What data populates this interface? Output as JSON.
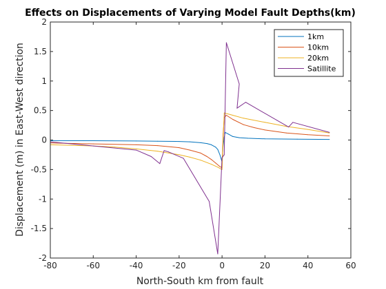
{
  "chart_data": {
    "type": "line",
    "title": "Effects on Displacements of Varying Model Fault Depths(km)",
    "xlabel": "North-South km from fault",
    "ylabel": "Displacement (m) in East-West direction",
    "xlim": [
      -80,
      60
    ],
    "ylim": [
      -2,
      2
    ],
    "xticks": [
      -80,
      -60,
      -40,
      -20,
      0,
      20,
      40,
      60
    ],
    "yticks": [
      -2,
      -1.5,
      -1,
      -0.5,
      0,
      0.5,
      1,
      1.5,
      2
    ],
    "grid": false,
    "legend_position": "top-right",
    "series": [
      {
        "name": "1km",
        "color": "#0072bd",
        "points": [
          [
            -80,
            -0.01
          ],
          [
            -60,
            -0.012
          ],
          [
            -40,
            -0.016
          ],
          [
            -30,
            -0.02
          ],
          [
            -20,
            -0.025
          ],
          [
            -15,
            -0.03
          ],
          [
            -10,
            -0.045
          ],
          [
            -7,
            -0.06
          ],
          [
            -5,
            -0.08
          ],
          [
            -3,
            -0.12
          ],
          [
            -2,
            -0.16
          ],
          [
            -1,
            -0.25
          ],
          [
            0,
            -0.37
          ],
          [
            0.5,
            -0.1
          ],
          [
            1,
            0.05
          ],
          [
            1.5,
            0.13
          ],
          [
            3,
            0.1
          ],
          [
            5,
            0.06
          ],
          [
            8,
            0.04
          ],
          [
            12,
            0.03
          ],
          [
            20,
            0.02
          ],
          [
            35,
            0.015
          ],
          [
            50,
            0.01
          ]
        ]
      },
      {
        "name": "10km",
        "color": "#d95319",
        "points": [
          [
            -80,
            -0.05
          ],
          [
            -60,
            -0.065
          ],
          [
            -40,
            -0.08
          ],
          [
            -30,
            -0.095
          ],
          [
            -20,
            -0.13
          ],
          [
            -15,
            -0.17
          ],
          [
            -10,
            -0.22
          ],
          [
            -7,
            -0.28
          ],
          [
            -5,
            -0.33
          ],
          [
            -3,
            -0.39
          ],
          [
            -1,
            -0.45
          ],
          [
            0,
            -0.47
          ],
          [
            0.5,
            0.1
          ],
          [
            1,
            0.38
          ],
          [
            2,
            0.42
          ],
          [
            5,
            0.35
          ],
          [
            10,
            0.26
          ],
          [
            15,
            0.21
          ],
          [
            20,
            0.17
          ],
          [
            30,
            0.12
          ],
          [
            40,
            0.09
          ],
          [
            50,
            0.07
          ]
        ]
      },
      {
        "name": "20km",
        "color": "#edb120",
        "points": [
          [
            -80,
            -0.08
          ],
          [
            -60,
            -0.1
          ],
          [
            -50,
            -0.12
          ],
          [
            -40,
            -0.15
          ],
          [
            -30,
            -0.19
          ],
          [
            -20,
            -0.25
          ],
          [
            -15,
            -0.29
          ],
          [
            -10,
            -0.34
          ],
          [
            -5,
            -0.41
          ],
          [
            -2,
            -0.46
          ],
          [
            0,
            -0.5
          ],
          [
            0.5,
            0.0
          ],
          [
            1,
            0.46
          ],
          [
            5,
            0.42
          ],
          [
            10,
            0.37
          ],
          [
            20,
            0.3
          ],
          [
            30,
            0.23
          ],
          [
            40,
            0.18
          ],
          [
            50,
            0.12
          ]
        ]
      },
      {
        "name": "Satillite",
        "color": "#7e2f8e",
        "points": [
          [
            -80,
            -0.03
          ],
          [
            -60,
            -0.1
          ],
          [
            -40,
            -0.17
          ],
          [
            -33,
            -0.28
          ],
          [
            -29,
            -0.4
          ],
          [
            -27,
            -0.18
          ],
          [
            -25,
            -0.2
          ],
          [
            -18,
            -0.31
          ],
          [
            -6,
            -1.04
          ],
          [
            -2,
            -1.93
          ],
          [
            0,
            -0.3
          ],
          [
            1,
            -0.25
          ],
          [
            2,
            1.65
          ],
          [
            8,
            0.95
          ],
          [
            7,
            0.54
          ],
          [
            11,
            0.64
          ],
          [
            31,
            0.22
          ],
          [
            33,
            0.3
          ],
          [
            50,
            0.13
          ]
        ]
      }
    ]
  }
}
